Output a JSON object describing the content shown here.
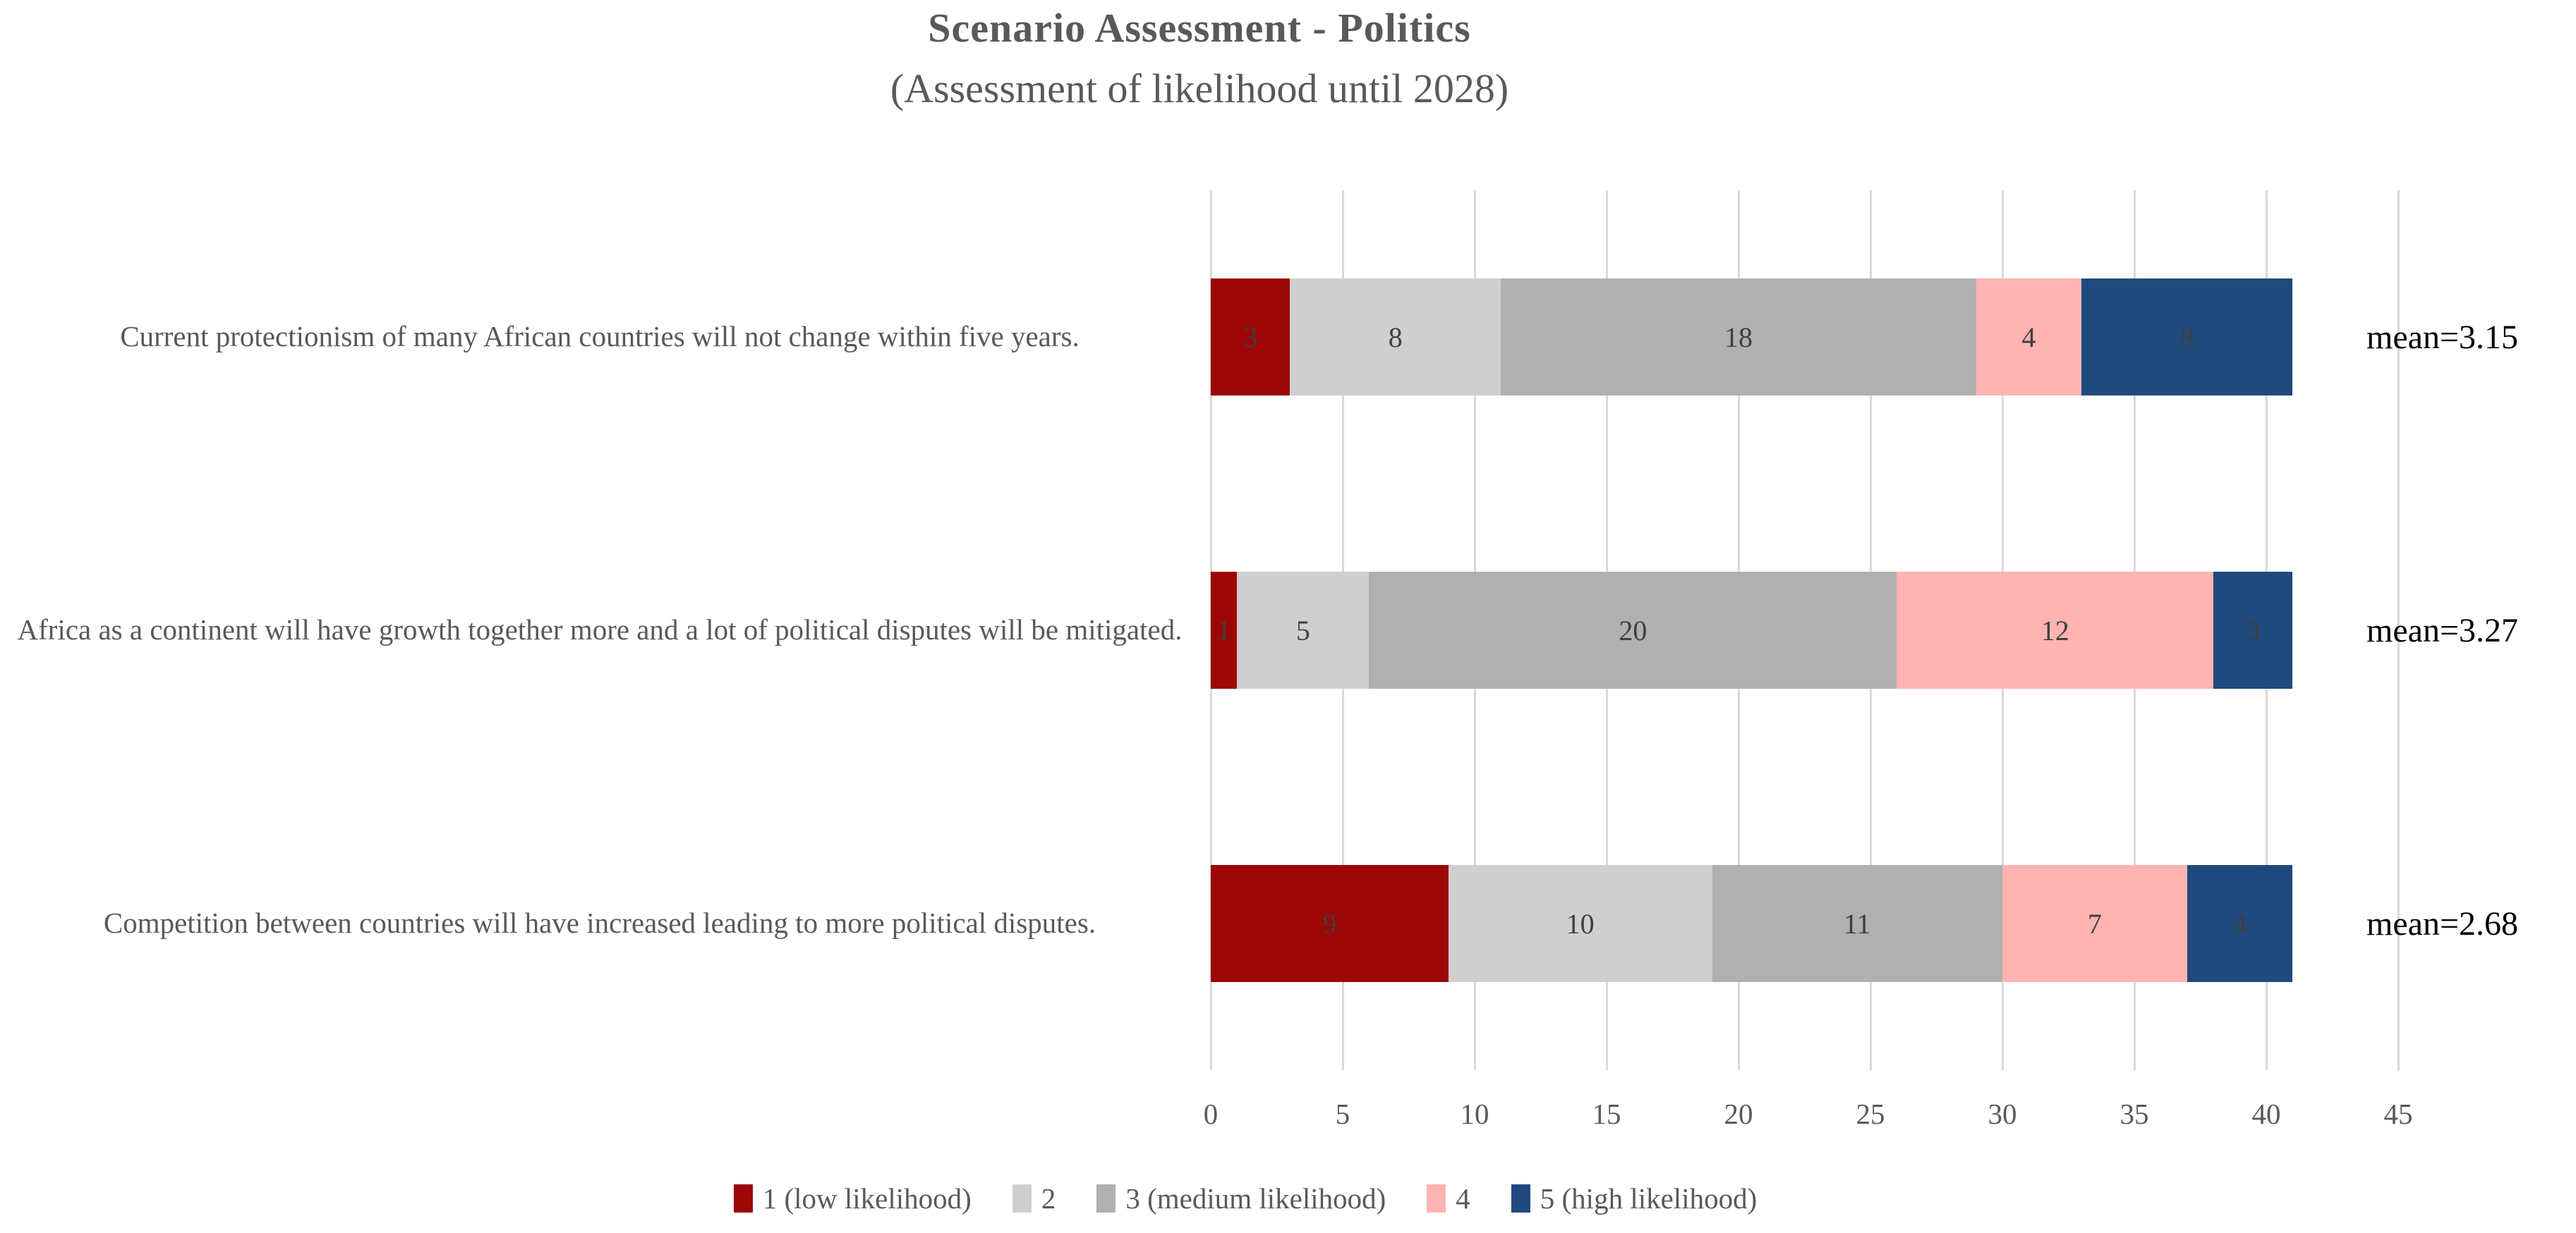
{
  "title": "Scenario Assessment - Politics",
  "subtitle": "(Assessment of likelihood until 2028)",
  "colors": {
    "likert1": "#9c0606",
    "likert2": "#cfcfcf",
    "likert3": "#b0b0b0",
    "likert4": "#ffb3b3",
    "likert5": "#204a7d",
    "gridline": "#d9d9d9",
    "text_gray": "#595959",
    "data_label": "#3f3f3f",
    "mean_text": "#000000"
  },
  "chart_data": {
    "type": "bar",
    "stacked": true,
    "orientation": "horizontal",
    "title": "Scenario Assessment - Politics",
    "subtitle": "(Assessment of likelihood until 2028)",
    "categories": [
      "Current protectionism of many African countries will not change within five years.",
      "Africa as a continent will have growth together more and a lot of political disputes will be mitigated.",
      "Competition between countries will have increased leading to more political disputes."
    ],
    "series": [
      {
        "name": "1 (low likelihood)",
        "color": "#9c0606",
        "values": [
          3,
          1,
          9
        ]
      },
      {
        "name": "2",
        "color": "#cfcfcf",
        "values": [
          8,
          5,
          10
        ]
      },
      {
        "name": "3 (medium likelihood)",
        "color": "#b0b0b0",
        "values": [
          18,
          20,
          11
        ]
      },
      {
        "name": "4",
        "color": "#ffb3b3",
        "values": [
          4,
          12,
          7
        ]
      },
      {
        "name": "5 (high likelihood)",
        "color": "#204a7d",
        "values": [
          8,
          3,
          4
        ]
      }
    ],
    "totals": [
      41,
      41,
      41
    ],
    "mean_labels": [
      "mean=3.15",
      "mean=3.27",
      "mean=2.68"
    ],
    "xticks": [
      0,
      5,
      10,
      15,
      20,
      25,
      30,
      35,
      40,
      45
    ],
    "xlim": [
      0,
      45
    ],
    "grid": "vertical",
    "legend_position": "bottom"
  }
}
